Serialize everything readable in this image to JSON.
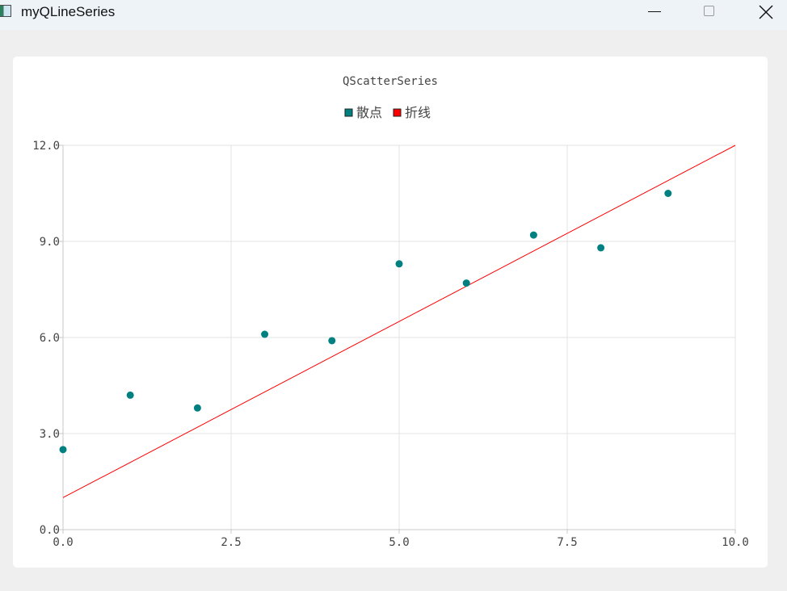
{
  "window": {
    "title": "myQLineSeries",
    "icon": "app-icon"
  },
  "chart_data": {
    "type": "scatter",
    "title": "QScatterSeries",
    "xlabel": "",
    "ylabel": "",
    "xlim": [
      0,
      10
    ],
    "ylim": [
      0,
      12
    ],
    "x_ticks": [
      "0.0",
      "2.5",
      "5.0",
      "7.5",
      "10.0"
    ],
    "y_ticks": [
      "0.0",
      "3.0",
      "6.0",
      "9.0",
      "12.0"
    ],
    "grid": true,
    "legend_position": "top",
    "series": [
      {
        "name": "散点",
        "type": "scatter",
        "color": "#008080",
        "x": [
          0,
          1,
          2,
          3,
          4,
          5,
          6,
          7,
          8,
          9
        ],
        "y": [
          2.5,
          4.2,
          3.8,
          6.1,
          5.9,
          8.3,
          7.7,
          9.2,
          8.8,
          10.5
        ]
      },
      {
        "name": "折线",
        "type": "line",
        "color": "#ff0000",
        "x": [
          0,
          10
        ],
        "y": [
          1.0,
          12.0
        ]
      }
    ]
  }
}
